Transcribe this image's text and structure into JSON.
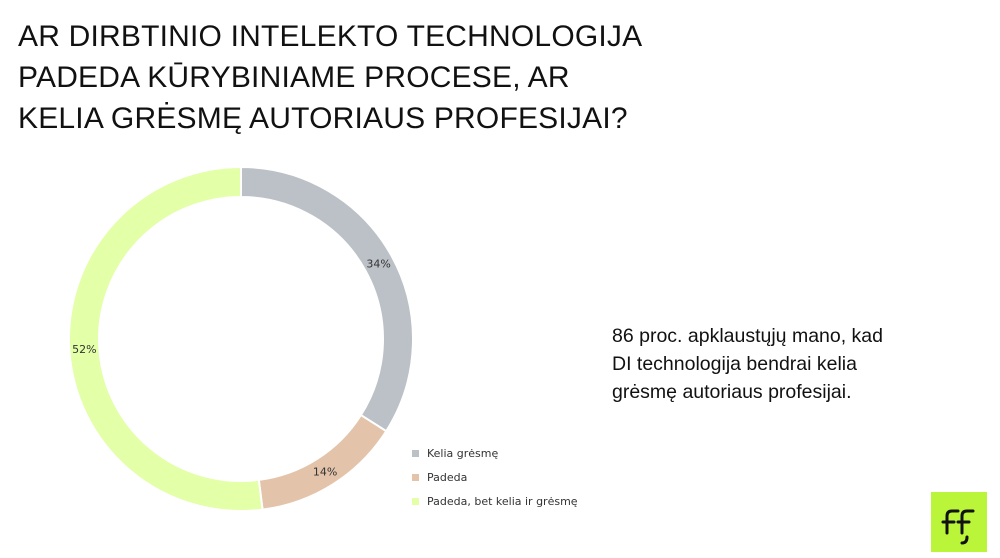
{
  "title_lines": [
    "AR DIRBTINIO INTELEKTO TECHNOLOGIJA",
    "PADEDA KŪRYBINIAME PROCESE, AR",
    "KELIA GRĖSMĘ AUTORIAUS PROFESIJAI?"
  ],
  "note_lines": [
    "86 proc. apklaustųjų mano, kad",
    "DI technologija bendrai kelia",
    "grėsmę autoriaus profesijai."
  ],
  "chart_data": {
    "type": "pie",
    "donut": true,
    "categories": [
      "Kelia grėsmę",
      "Padeda",
      "Padeda, bet kelia ir grėsmę"
    ],
    "values": [
      34,
      14,
      52
    ],
    "data_labels": [
      "34%",
      "14%",
      "52%"
    ],
    "colors": [
      "#bcc1c7",
      "#e3c4ab",
      "#e3ffa8"
    ],
    "start_angle": "top, clockwise",
    "legend_position": "bottom-right"
  },
  "logo": {
    "icon": "ff-logo-icon",
    "color": "#baf53a"
  }
}
